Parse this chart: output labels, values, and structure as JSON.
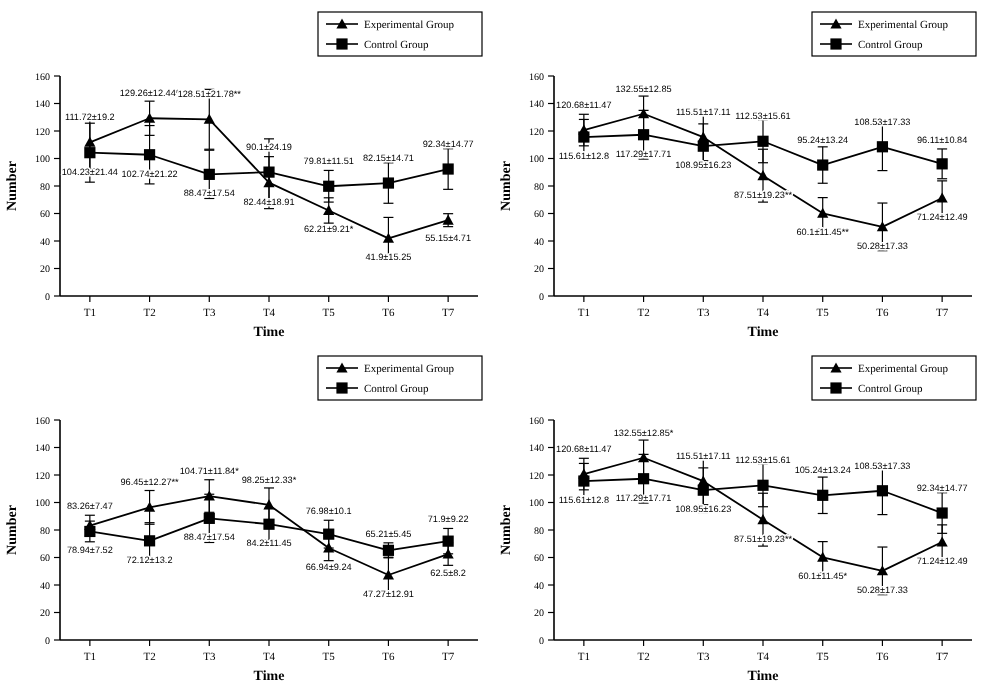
{
  "chart_data": [
    {
      "type": "line",
      "categories": [
        "T1",
        "T2",
        "T3",
        "T4",
        "T5",
        "T6",
        "T7"
      ],
      "xlabel": "Time",
      "ylabel": "Number",
      "ylim": [
        0,
        160
      ],
      "yticks": [
        0,
        20,
        40,
        60,
        80,
        100,
        120,
        140,
        160
      ],
      "grid": false,
      "legend": "top right",
      "series": [
        {
          "name": "Experimental Group",
          "color": "#000000",
          "marker": "triangle",
          "values": [
            111.72,
            129.26,
            128.51,
            82.44,
            62.21,
            41.9,
            55.15
          ],
          "errors": [
            19.2,
            12.44,
            21.78,
            18.91,
            9.21,
            15.25,
            4.71
          ],
          "value_labels": [
            "111.72±19.2",
            "129.26±12.44*",
            "128.51±21.78**",
            "82.44±18.91",
            "62.21±9.21*",
            "41.9±15.25",
            "55.15±4.71"
          ]
        },
        {
          "name": "Control Group",
          "color": "#000000",
          "marker": "square",
          "values": [
            104.23,
            102.74,
            88.47,
            90.1,
            79.81,
            82.15,
            92.34
          ],
          "errors": [
            21.44,
            21.22,
            17.54,
            24.19,
            11.51,
            14.71,
            14.77
          ],
          "value_labels": [
            "104.23±21.44",
            "102.74±21.22",
            "88.47±17.54",
            "90.1±24.19",
            "79.81±11.51",
            "82.15±14.71",
            "92.34±14.77"
          ]
        }
      ]
    },
    {
      "type": "line",
      "categories": [
        "T1",
        "T2",
        "T3",
        "T4",
        "T5",
        "T6",
        "T7"
      ],
      "xlabel": "Time",
      "ylabel": "Number",
      "ylim": [
        0,
        160
      ],
      "yticks": [
        0,
        20,
        40,
        60,
        80,
        100,
        120,
        140,
        160
      ],
      "grid": false,
      "legend": "top right",
      "series": [
        {
          "name": "Experimental Group",
          "color": "#000000",
          "marker": "triangle",
          "values": [
            120.68,
            132.55,
            115.51,
            87.51,
            60.1,
            50.28,
            71.24
          ],
          "errors": [
            11.47,
            12.85,
            17.11,
            19.23,
            11.45,
            17.33,
            12.49
          ],
          "value_labels": [
            "120.68±11.47",
            "132.55±12.85",
            "115.51±17.11",
            "87.51±19.23**",
            "60.1±11.45**",
            "50.28±17.33",
            "71.24±12.49"
          ]
        },
        {
          "name": "Control Group",
          "color": "#000000",
          "marker": "square",
          "values": [
            115.61,
            117.29,
            108.95,
            112.53,
            95.24,
            108.53,
            96.11
          ],
          "errors": [
            12.8,
            17.71,
            16.23,
            15.61,
            13.24,
            17.33,
            10.84
          ],
          "value_labels": [
            "115.61±12.8",
            "117.29±17.71",
            "108.95±16.23",
            "112.53±15.61",
            "95.24±13.24",
            "108.53±17.33",
            "96.11±10.84"
          ]
        }
      ]
    },
    {
      "type": "line",
      "categories": [
        "T1",
        "T2",
        "T3",
        "T4",
        "T5",
        "T6",
        "T7"
      ],
      "xlabel": "Time",
      "ylabel": "Number",
      "ylim": [
        0,
        160
      ],
      "yticks": [
        0,
        20,
        40,
        60,
        80,
        100,
        120,
        140,
        160
      ],
      "grid": false,
      "legend": "top right",
      "series": [
        {
          "name": "Experimental Group",
          "color": "#000000",
          "marker": "triangle",
          "values": [
            83.26,
            96.45,
            104.71,
            98.25,
            66.94,
            47.27,
            62.5
          ],
          "errors": [
            7.47,
            12.27,
            11.84,
            12.33,
            9.24,
            12.91,
            8.2
          ],
          "value_labels": [
            "83.26±7.47",
            "96.45±12.27**",
            "104.71±11.84*",
            "98.25±12.33*",
            "66.94±9.24",
            "47.27±12.91",
            "62.5±8.2"
          ]
        },
        {
          "name": "Control Group",
          "color": "#000000",
          "marker": "square",
          "values": [
            78.94,
            72.12,
            88.47,
            84.2,
            76.98,
            65.21,
            71.9
          ],
          "errors": [
            7.52,
            13.2,
            17.54,
            11.45,
            10.1,
            5.45,
            9.22
          ],
          "value_labels": [
            "78.94±7.52",
            "72.12±13.2",
            "88.47±17.54",
            "84.2±11.45",
            "76.98±10.1",
            "65.21±5.45",
            "71.9±9.22"
          ]
        }
      ]
    },
    {
      "type": "line",
      "categories": [
        "T1",
        "T2",
        "T3",
        "T4",
        "T5",
        "T6",
        "T7"
      ],
      "xlabel": "Time",
      "ylabel": "Number",
      "ylim": [
        0,
        160
      ],
      "yticks": [
        0,
        20,
        40,
        60,
        80,
        100,
        120,
        140,
        160
      ],
      "grid": false,
      "legend": "top right",
      "series": [
        {
          "name": "Experimental Group",
          "color": "#000000",
          "marker": "triangle",
          "values": [
            120.68,
            132.55,
            115.51,
            87.51,
            60.1,
            50.28,
            71.24
          ],
          "errors": [
            11.47,
            12.85,
            17.11,
            19.23,
            11.45,
            17.33,
            12.49
          ],
          "value_labels": [
            "120.68±11.47",
            "132.55±12.85*",
            "115.51±17.11",
            "87.51±19.23**",
            "60.1±11.45*",
            "50.28±17.33",
            "71.24±12.49"
          ]
        },
        {
          "name": "Control Group",
          "color": "#000000",
          "marker": "square",
          "values": [
            115.61,
            117.29,
            108.95,
            112.53,
            105.24,
            108.53,
            92.34
          ],
          "errors": [
            12.8,
            17.71,
            16.23,
            15.61,
            13.24,
            17.33,
            14.77
          ],
          "value_labels": [
            "115.61±12.8",
            "117.29±17.71",
            "108.95±16.23",
            "112.53±15.61",
            "105.24±13.24",
            "108.53±17.33",
            "92.34±14.77"
          ]
        }
      ]
    }
  ]
}
